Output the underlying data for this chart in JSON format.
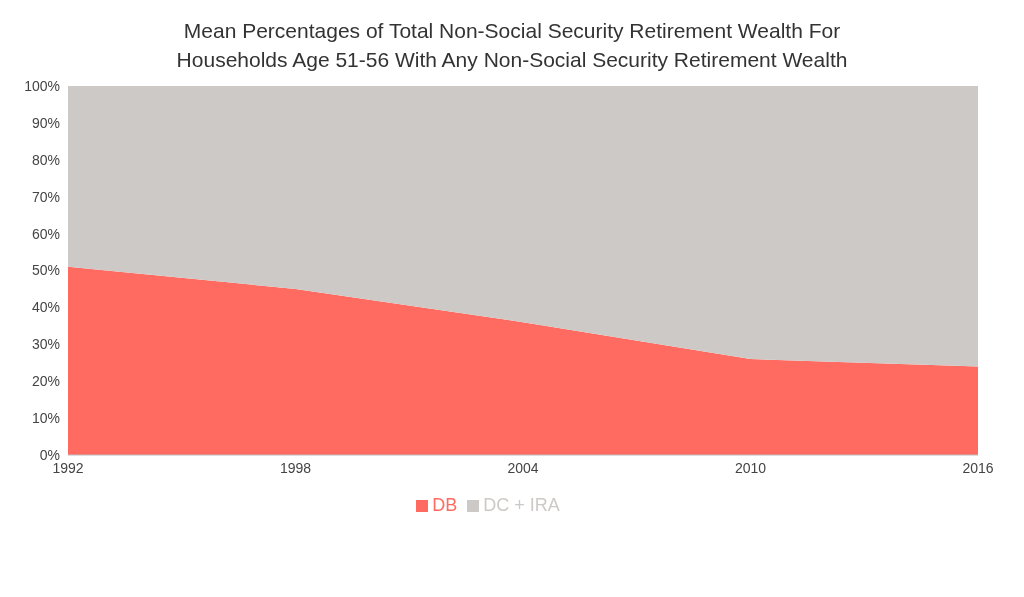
{
  "chart_data": {
    "type": "area",
    "stacked": true,
    "title": "Mean Percentages of Total Non-Social Security Retirement Wealth For Households Age 51-56 With Any Non-Social Security Retirement Wealth",
    "x": [
      1992,
      1998,
      2004,
      2010,
      2016
    ],
    "series": [
      {
        "name": "DB",
        "color": "#ff6b61",
        "values": [
          51,
          45,
          36,
          26,
          24
        ]
      },
      {
        "name": "DC + IRA",
        "color": "#cdc9c6",
        "values": [
          49,
          55,
          64,
          74,
          76
        ]
      }
    ],
    "xlim": [
      1992,
      2016
    ],
    "xticks": [
      1992,
      1998,
      2004,
      2010,
      2016
    ],
    "ylim": [
      0,
      100
    ],
    "yticks": [
      {
        "value": 0,
        "label": "0%"
      },
      {
        "value": 10,
        "label": "10%"
      },
      {
        "value": 20,
        "label": "20%"
      },
      {
        "value": 30,
        "label": "30%"
      },
      {
        "value": 40,
        "label": "40%"
      },
      {
        "value": 50,
        "label": "50%"
      },
      {
        "value": 60,
        "label": "60%"
      },
      {
        "value": 70,
        "label": "70%"
      },
      {
        "value": 80,
        "label": "80%"
      },
      {
        "value": 90,
        "label": "90%"
      },
      {
        "value": 100,
        "label": "100%"
      }
    ],
    "grid": false,
    "legend": "bottom"
  }
}
